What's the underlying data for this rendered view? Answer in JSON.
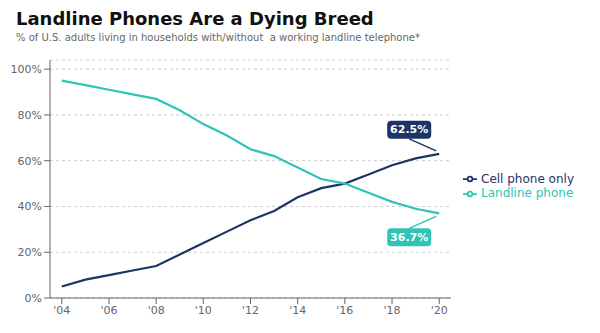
{
  "chart_data": {
    "type": "line",
    "title": "Landline Phones Are a Dying Breed",
    "subtitle": "% of U.S. adults living in households with/without  a working landline telephone*",
    "x": [
      2004,
      2005,
      2006,
      2007,
      2008,
      2009,
      2010,
      2011,
      2012,
      2013,
      2014,
      2015,
      2016,
      2017,
      2018,
      2019,
      2020
    ],
    "series": [
      {
        "name": "Cell phone only",
        "color": "#1e3464",
        "values": [
          5,
          8,
          10,
          12,
          14,
          19,
          24,
          29,
          34,
          38,
          44,
          48,
          50,
          54,
          58,
          61,
          63
        ],
        "annotation": "62.5%"
      },
      {
        "name": "Landline phone",
        "color": "#2ec4b6",
        "values": [
          95,
          93,
          91,
          89,
          87,
          82,
          76,
          71,
          65,
          62,
          57,
          52,
          50,
          46,
          42,
          39,
          37
        ],
        "annotation": "36.7%"
      }
    ],
    "xlim": [
      2003.5,
      2020.5
    ],
    "xticks": [
      {
        "value": 2004,
        "label": "'04"
      },
      {
        "value": 2006,
        "label": "'06"
      },
      {
        "value": 2008,
        "label": "'08"
      },
      {
        "value": 2010,
        "label": "'10"
      },
      {
        "value": 2012,
        "label": "'12"
      },
      {
        "value": 2014,
        "label": "'14"
      },
      {
        "value": 2016,
        "label": "'16"
      },
      {
        "value": 2018,
        "label": "'18"
      },
      {
        "value": 2020,
        "label": "'20"
      }
    ],
    "ylim": [
      0,
      104
    ],
    "yticks": [
      {
        "value": 0,
        "label": "0%"
      },
      {
        "value": 20,
        "label": "20%"
      },
      {
        "value": 40,
        "label": "40%"
      },
      {
        "value": 60,
        "label": "60%"
      },
      {
        "value": 80,
        "label": "80%"
      },
      {
        "value": 100,
        "label": "100%"
      }
    ],
    "grid": true,
    "legend": "right"
  }
}
